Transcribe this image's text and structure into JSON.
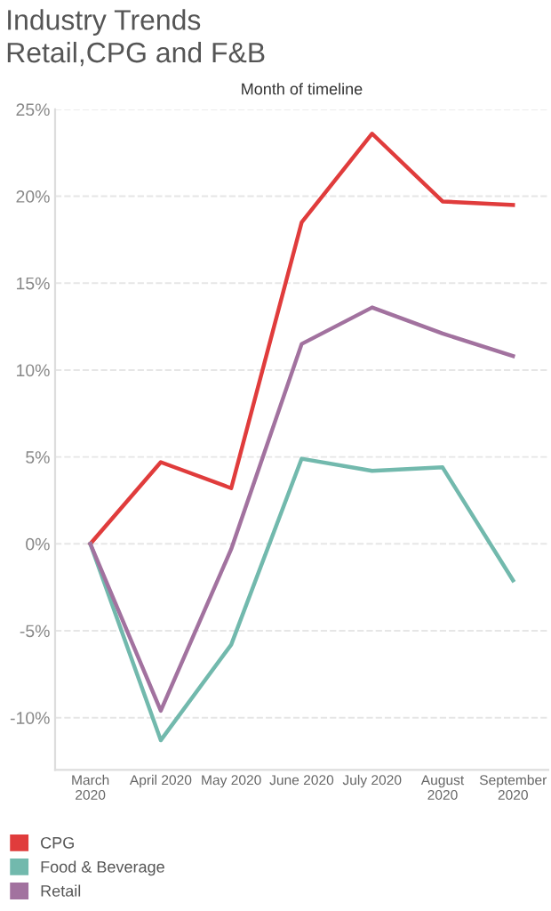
{
  "chart_data": {
    "type": "line",
    "title": "Industry Trends\nRetail,CPG and F&B",
    "xlabel": "Month of timeline",
    "categories": [
      "March\n2020",
      "April 2020",
      "May 2020",
      "June 2020",
      "July 2020",
      "August\n2020",
      "September\n2020"
    ],
    "series": [
      {
        "name": "CPG",
        "color": "#e03c3c",
        "values": [
          0,
          4.7,
          3.2,
          18.5,
          23.6,
          19.7,
          19.5
        ]
      },
      {
        "name": "Food & Beverage",
        "color": "#72b9ad",
        "values": [
          0,
          -11.3,
          -5.8,
          4.9,
          4.2,
          4.4,
          -2.1
        ]
      },
      {
        "name": "Retail",
        "color": "#a2729f",
        "values": [
          0,
          -9.6,
          -0.3,
          11.5,
          13.6,
          12.1,
          10.8
        ]
      }
    ],
    "ylim": [
      -13,
      25
    ],
    "yticks": [
      {
        "value": -10,
        "label": "-10%"
      },
      {
        "value": -5,
        "label": "-5%"
      },
      {
        "value": 0,
        "label": "0%"
      },
      {
        "value": 5,
        "label": "5%"
      },
      {
        "value": 10,
        "label": "10%"
      },
      {
        "value": 15,
        "label": "15%"
      },
      {
        "value": 20,
        "label": "20%"
      },
      {
        "value": 25,
        "label": "25%"
      }
    ],
    "grid": "y",
    "legend": "bottom left",
    "marker": "none",
    "line_style": "solid"
  }
}
